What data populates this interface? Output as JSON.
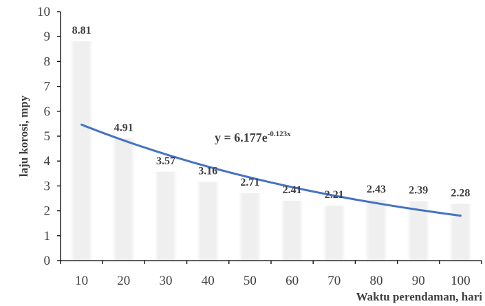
{
  "chart_data": {
    "type": "bar",
    "categories": [
      "10",
      "20",
      "30",
      "40",
      "50",
      "60",
      "70",
      "80",
      "90",
      "100"
    ],
    "values": [
      8.81,
      4.91,
      3.57,
      3.16,
      2.71,
      2.41,
      2.21,
      2.43,
      2.39,
      2.28
    ],
    "data_labels": [
      "8.81",
      "4.91",
      "3.57",
      "3.16",
      "2.71",
      "2.41",
      "2.21",
      "2.43",
      "2.39",
      "2.28"
    ],
    "xlabel": "Waktu perendaman, hari",
    "ylabel": "laju korosi, mpy",
    "ylim": [
      0,
      10
    ],
    "yticks": [
      "0",
      "1",
      "2",
      "3",
      "4",
      "5",
      "6",
      "7",
      "8",
      "9",
      "10"
    ],
    "grid": false,
    "bar_color": "#efefef",
    "trendline": {
      "type": "exponential",
      "a": 6.177,
      "b": -0.123,
      "color": "#4472c4",
      "equation_main": "y = 6.177e",
      "equation_exp": "-0.123x"
    }
  }
}
